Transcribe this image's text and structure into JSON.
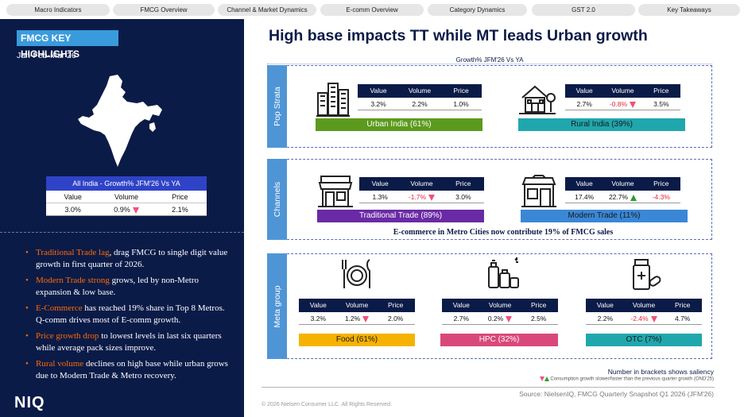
{
  "nav": {
    "tabs": [
      "Macro Indicators",
      "FMCG Overview",
      "Channel & Market Dynamics",
      "E-comm Overview",
      "Category Dynamics",
      "GST 2.0",
      "Key Takeaways"
    ]
  },
  "left": {
    "title": "FMCG KEY HIGHLIGHTS",
    "period": "Jan-Feb-Mar 26",
    "all_india": {
      "header": "All India - Growth% JFM'26 Vs YA",
      "labels": [
        "Value",
        "Volume",
        "Price"
      ],
      "values": [
        "3.0%",
        "0.9%",
        "2.1%"
      ],
      "volume_trend": "down"
    },
    "bullets": [
      {
        "highlight": "Traditional Trade lag",
        "text": ", drag FMCG to single digit value growth in first quarter of 2026."
      },
      {
        "highlight": "Modern Trade strong",
        "text": " grows, led by non-Metro expansion & low base."
      },
      {
        "highlight": "E-Commerce",
        "text": " has reached 19% share in Top 8 Metros. Q-comm drives most of E-comm growth."
      },
      {
        "highlight": "Price growth drop",
        "text": " to lowest levels in last six quarters while average pack sizes improve."
      },
      {
        "highlight": "Rural volume",
        "text": " declines on high base while urban grows due to Modern Trade & Metro recovery."
      }
    ],
    "logo": "NIQ"
  },
  "main": {
    "title": "High base impacts TT while MT leads Urban growth",
    "subheader": "Growth% JFM'26 Vs YA",
    "labels": [
      "Value",
      "Volume",
      "Price"
    ],
    "sections": {
      "pop_strata": {
        "label": "Pop Strata",
        "items": [
          {
            "name": "Urban India (61%)",
            "icon": "city-buildings-icon",
            "value": "3.2%",
            "volume": "2.2%",
            "price": "1.0%",
            "volume_trend": "",
            "price_trend": "",
            "color": "#5c9a1d"
          },
          {
            "name": "Rural India (39%)",
            "icon": "rural-house-icon",
            "value": "2.7%",
            "volume": "-0.8%",
            "price": "3.5%",
            "volume_trend": "down",
            "price_trend": "",
            "color": "#20a7ad"
          }
        ]
      },
      "channels": {
        "label": "Channels",
        "items": [
          {
            "name": "Traditional Trade (89%)",
            "icon": "kirana-store-icon",
            "value": "1.3%",
            "volume": "-1.7%",
            "price": "3.0%",
            "volume_trend": "down",
            "price_trend": "",
            "color": "#6a2aa5"
          },
          {
            "name": "Modern Trade (11%)",
            "icon": "supermarket-icon",
            "value": "17.4%",
            "volume": "22.7%",
            "price": "-4.3%",
            "volume_trend": "up",
            "price_trend": "",
            "color": "#3a87d6"
          }
        ],
        "note": "E-commerce in Metro Cities now contribute 19% of FMCG sales"
      },
      "meta_group": {
        "label": "Meta group",
        "items": [
          {
            "name": "Food (61%)",
            "icon": "plate-cutlery-icon",
            "value": "3.2%",
            "volume": "1.2%",
            "price": "2.0%",
            "volume_trend": "down",
            "price_trend": "",
            "color": "#f6b200"
          },
          {
            "name": "HPC (32%)",
            "icon": "personal-care-bottles-icon",
            "value": "2.7%",
            "volume": "0.2%",
            "price": "2.5%",
            "volume_trend": "down",
            "price_trend": "",
            "color": "#d9487a"
          },
          {
            "name": "OTC (7%)",
            "icon": "medicine-icon",
            "value": "2.2%",
            "volume": "-2.4%",
            "price": "4.7%",
            "volume_trend": "down",
            "price_trend": "",
            "color": "#20a7ad"
          }
        ]
      }
    },
    "saliency_note": "Number in brackets shows saliency",
    "legend_text": "Consumption growth slower/faster than the previous quarter growth (OND'25)",
    "source": "Source: NielsenIQ, FMCG Quarterly Snapshot Q1 2026 (JFM'26)",
    "copyright": "© 2026 Nielsen Consumer LLC. All Rights Reserved."
  }
}
